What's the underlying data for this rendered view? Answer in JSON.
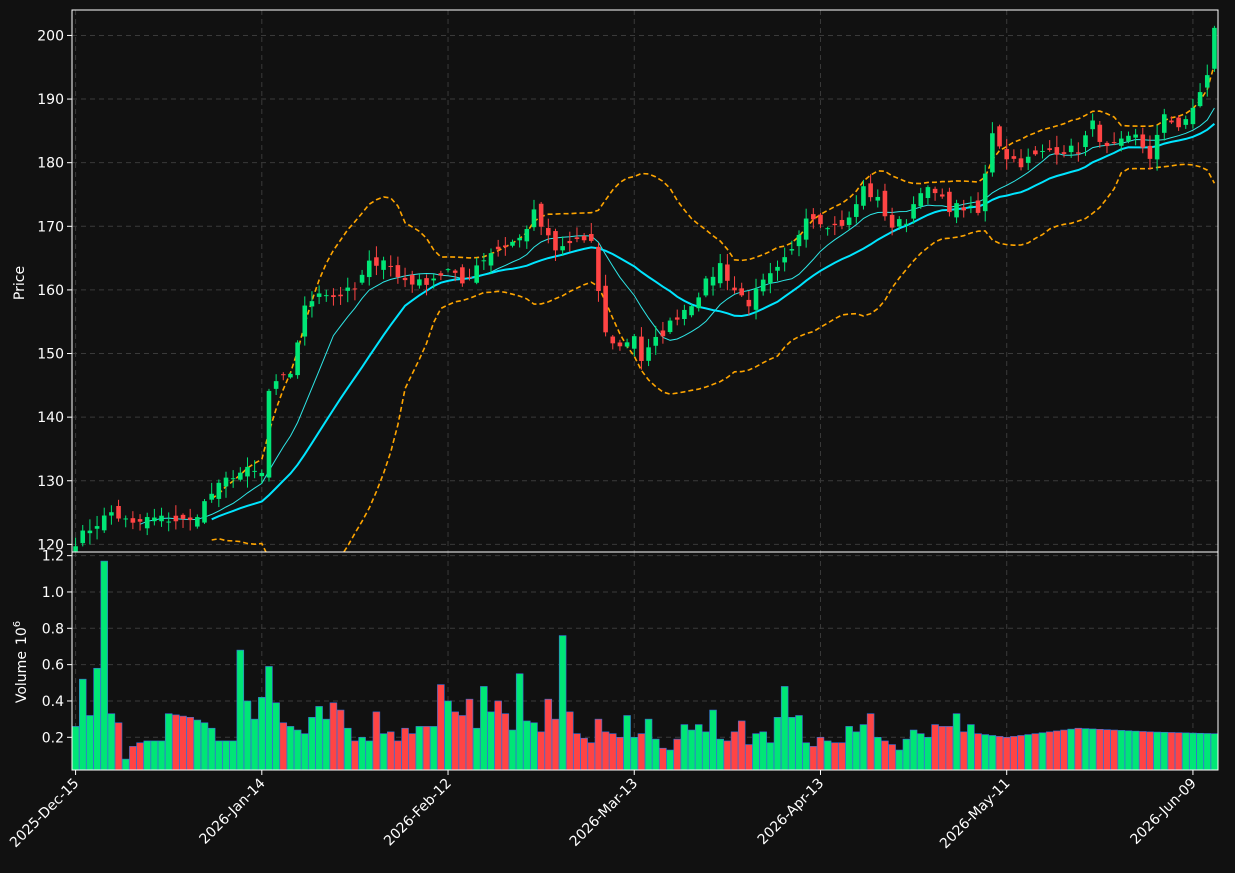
{
  "chart_data": {
    "type": "candlestick",
    "x_ticks": [
      "2025-Dec-15",
      "2026-Jan-14",
      "2026-Feb-12",
      "2026-Mar-13",
      "2026-Apr-13",
      "2026-May-11",
      "2026-Jun-09"
    ],
    "x_tick_index": [
      0,
      26,
      52,
      78,
      104,
      130,
      156
    ],
    "n_bars": 160,
    "price_panel": {
      "ylabel": "Price",
      "ylim": [
        118.8,
        204
      ],
      "yticks": [
        120,
        130,
        140,
        150,
        160,
        170,
        180,
        190,
        200
      ],
      "grid": true
    },
    "volume_panel": {
      "ylabel": "Volume",
      "ylabel_exponent": "10",
      "ylabel_exponent_power": "6",
      "ylim": [
        0.02,
        1.22
      ],
      "yticks": [
        "0.2",
        "0.4",
        "0.6",
        "0.8",
        "1.0",
        "1.2"
      ],
      "ytick_values": [
        0.2,
        0.4,
        0.6,
        0.8,
        1.0,
        1.2
      ],
      "grid": true
    },
    "price_anchors": [
      [
        0,
        120.5
      ],
      [
        2,
        122.5
      ],
      [
        5,
        125
      ],
      [
        8,
        123
      ],
      [
        10,
        124
      ],
      [
        13,
        124
      ],
      [
        16,
        123.5
      ],
      [
        19,
        128
      ],
      [
        22,
        131
      ],
      [
        24,
        131.5
      ],
      [
        26,
        131
      ],
      [
        27,
        144
      ],
      [
        30,
        147
      ],
      [
        32,
        157
      ],
      [
        34,
        160
      ],
      [
        36,
        159
      ],
      [
        39,
        160
      ],
      [
        41,
        164
      ],
      [
        43,
        165
      ],
      [
        45,
        162
      ],
      [
        48,
        161
      ],
      [
        50,
        162
      ],
      [
        52,
        163
      ],
      [
        54,
        161
      ],
      [
        56,
        164
      ],
      [
        58,
        166
      ],
      [
        60,
        167
      ],
      [
        62,
        168
      ],
      [
        64,
        172
      ],
      [
        67,
        166
      ],
      [
        70,
        168
      ],
      [
        72,
        167
      ],
      [
        73,
        160
      ],
      [
        74,
        153
      ],
      [
        76,
        151
      ],
      [
        78,
        153
      ],
      [
        79,
        149
      ],
      [
        81,
        152
      ],
      [
        84,
        156
      ],
      [
        86,
        158
      ],
      [
        88,
        161
      ],
      [
        90,
        164
      ],
      [
        92,
        160
      ],
      [
        94,
        158
      ],
      [
        96,
        161
      ],
      [
        98,
        163
      ],
      [
        100,
        166
      ],
      [
        102,
        172
      ],
      [
        104,
        171
      ],
      [
        106,
        170
      ],
      [
        108,
        171
      ],
      [
        110,
        176
      ],
      [
        112,
        174
      ],
      [
        114,
        170
      ],
      [
        116,
        171
      ],
      [
        118,
        176
      ],
      [
        120,
        175
      ],
      [
        122,
        173
      ],
      [
        124,
        173
      ],
      [
        126,
        172
      ],
      [
        127,
        178
      ],
      [
        128,
        185
      ],
      [
        130,
        181
      ],
      [
        132,
        180
      ],
      [
        134,
        181
      ],
      [
        136,
        182
      ],
      [
        138,
        182
      ],
      [
        140,
        182
      ],
      [
        142,
        186
      ],
      [
        144,
        182
      ],
      [
        146,
        183
      ],
      [
        148,
        184
      ],
      [
        150,
        181
      ],
      [
        152,
        187
      ],
      [
        154,
        186
      ],
      [
        156,
        188
      ],
      [
        158,
        194
      ],
      [
        159,
        201
      ]
    ],
    "volume_anchors": [
      [
        0,
        0.26
      ],
      [
        1,
        0.52
      ],
      [
        2,
        0.32
      ],
      [
        3,
        0.58
      ],
      [
        4,
        1.17
      ],
      [
        5,
        0.33
      ],
      [
        6,
        0.28
      ],
      [
        7,
        0.08
      ],
      [
        8,
        0.15
      ],
      [
        9,
        0.17
      ],
      [
        10,
        0.18
      ],
      [
        11,
        0.18
      ],
      [
        12,
        0.18
      ],
      [
        13,
        0.33
      ],
      [
        16,
        0.31
      ],
      [
        18,
        0.28
      ],
      [
        19,
        0.25
      ],
      [
        20,
        0.18
      ],
      [
        22,
        0.18
      ],
      [
        23,
        0.68
      ],
      [
        24,
        0.4
      ],
      [
        25,
        0.3
      ],
      [
        26,
        0.42
      ],
      [
        27,
        0.59
      ],
      [
        28,
        0.39
      ],
      [
        29,
        0.28
      ],
      [
        30,
        0.26
      ],
      [
        31,
        0.24
      ],
      [
        32,
        0.22
      ],
      [
        33,
        0.31
      ],
      [
        34,
        0.37
      ],
      [
        35,
        0.3
      ],
      [
        36,
        0.39
      ],
      [
        37,
        0.35
      ],
      [
        38,
        0.25
      ],
      [
        39,
        0.18
      ],
      [
        40,
        0.2
      ],
      [
        41,
        0.18
      ],
      [
        42,
        0.34
      ],
      [
        43,
        0.22
      ],
      [
        44,
        0.23
      ],
      [
        45,
        0.18
      ],
      [
        46,
        0.25
      ],
      [
        47,
        0.22
      ],
      [
        48,
        0.26
      ],
      [
        50,
        0.26
      ],
      [
        51,
        0.49
      ],
      [
        52,
        0.4
      ],
      [
        53,
        0.34
      ],
      [
        54,
        0.32
      ],
      [
        55,
        0.41
      ],
      [
        56,
        0.25
      ],
      [
        57,
        0.48
      ],
      [
        58,
        0.34
      ],
      [
        59,
        0.4
      ],
      [
        60,
        0.33
      ],
      [
        61,
        0.24
      ],
      [
        62,
        0.55
      ],
      [
        63,
        0.29
      ],
      [
        64,
        0.28
      ],
      [
        65,
        0.23
      ],
      [
        66,
        0.41
      ],
      [
        67,
        0.3
      ],
      [
        68,
        0.76
      ],
      [
        69,
        0.34
      ],
      [
        70,
        0.22
      ],
      [
        72,
        0.17
      ],
      [
        73,
        0.3
      ],
      [
        74,
        0.23
      ],
      [
        75,
        0.22
      ],
      [
        76,
        0.2
      ],
      [
        77,
        0.32
      ],
      [
        78,
        0.2
      ],
      [
        79,
        0.22
      ],
      [
        80,
        0.3
      ],
      [
        81,
        0.19
      ],
      [
        82,
        0.14
      ],
      [
        83,
        0.13
      ],
      [
        84,
        0.19
      ],
      [
        85,
        0.27
      ],
      [
        86,
        0.24
      ],
      [
        87,
        0.27
      ],
      [
        88,
        0.23
      ],
      [
        89,
        0.35
      ],
      [
        90,
        0.19
      ],
      [
        91,
        0.18
      ],
      [
        92,
        0.23
      ],
      [
        93,
        0.29
      ],
      [
        94,
        0.16
      ],
      [
        95,
        0.22
      ],
      [
        96,
        0.23
      ],
      [
        97,
        0.17
      ],
      [
        98,
        0.31
      ],
      [
        99,
        0.48
      ],
      [
        100,
        0.31
      ],
      [
        101,
        0.32
      ],
      [
        102,
        0.17
      ],
      [
        103,
        0.15
      ],
      [
        104,
        0.2
      ],
      [
        105,
        0.18
      ],
      [
        106,
        0.17
      ],
      [
        107,
        0.17
      ],
      [
        108,
        0.26
      ],
      [
        109,
        0.23
      ],
      [
        110,
        0.27
      ],
      [
        111,
        0.33
      ],
      [
        112,
        0.2
      ],
      [
        113,
        0.18
      ],
      [
        114,
        0.16
      ],
      [
        115,
        0.13
      ],
      [
        116,
        0.19
      ],
      [
        117,
        0.24
      ],
      [
        118,
        0.22
      ],
      [
        119,
        0.2
      ],
      [
        120,
        0.27
      ],
      [
        121,
        0.26
      ],
      [
        122,
        0.26
      ],
      [
        123,
        0.33
      ],
      [
        124,
        0.23
      ],
      [
        125,
        0.27
      ],
      [
        126,
        0.22
      ],
      [
        130,
        0.2
      ],
      [
        140,
        0.25
      ],
      [
        150,
        0.23
      ],
      [
        159,
        0.22
      ]
    ],
    "colors": {
      "background": "#111111",
      "up": "#00e676",
      "down": "#ff4444",
      "ma_short": "#2ee6e6",
      "ma_long": "#00e5ff",
      "bands": "#ffa500",
      "grid": "#3a3a3a",
      "axis": "#ffffff",
      "volume_edge": "#3a6fd8"
    },
    "overlays": [
      "short moving average",
      "long moving average",
      "upper band",
      "lower band"
    ]
  }
}
